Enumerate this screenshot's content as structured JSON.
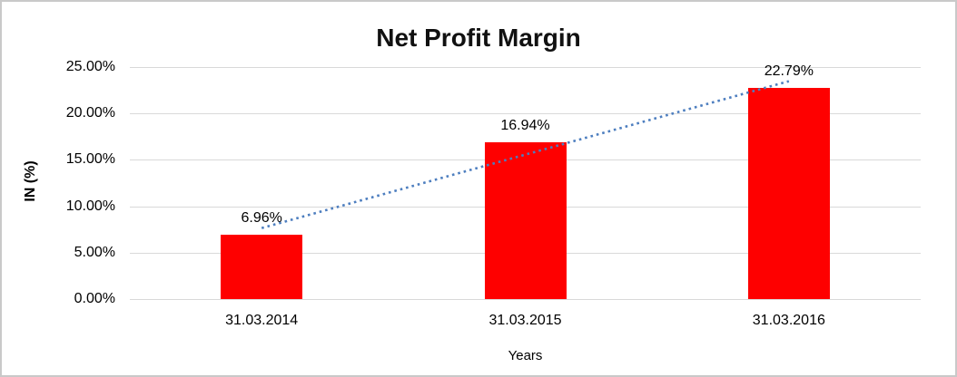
{
  "chart_data": {
    "type": "bar",
    "title": "Net Profit Margin",
    "categories": [
      "31.03.2014",
      "31.03.2015",
      "31.03.2016"
    ],
    "values": [
      6.96,
      16.94,
      22.79
    ],
    "data_labels": [
      "6.96%",
      "16.94%",
      "22.79%"
    ],
    "xlabel": "Years",
    "ylabel": "IN (%)",
    "ylim": [
      0,
      25
    ],
    "ytick_step": 5,
    "yticks": [
      "0.00%",
      "5.00%",
      "10.00%",
      "15.00%",
      "20.00%",
      "25.00%"
    ],
    "grid": true,
    "legend": "none",
    "bar_color": "#fe0000",
    "gridline_color": "#d9d9d9",
    "trendline": {
      "type": "linear",
      "style": "dotted",
      "color": "#4d7ebf"
    }
  }
}
